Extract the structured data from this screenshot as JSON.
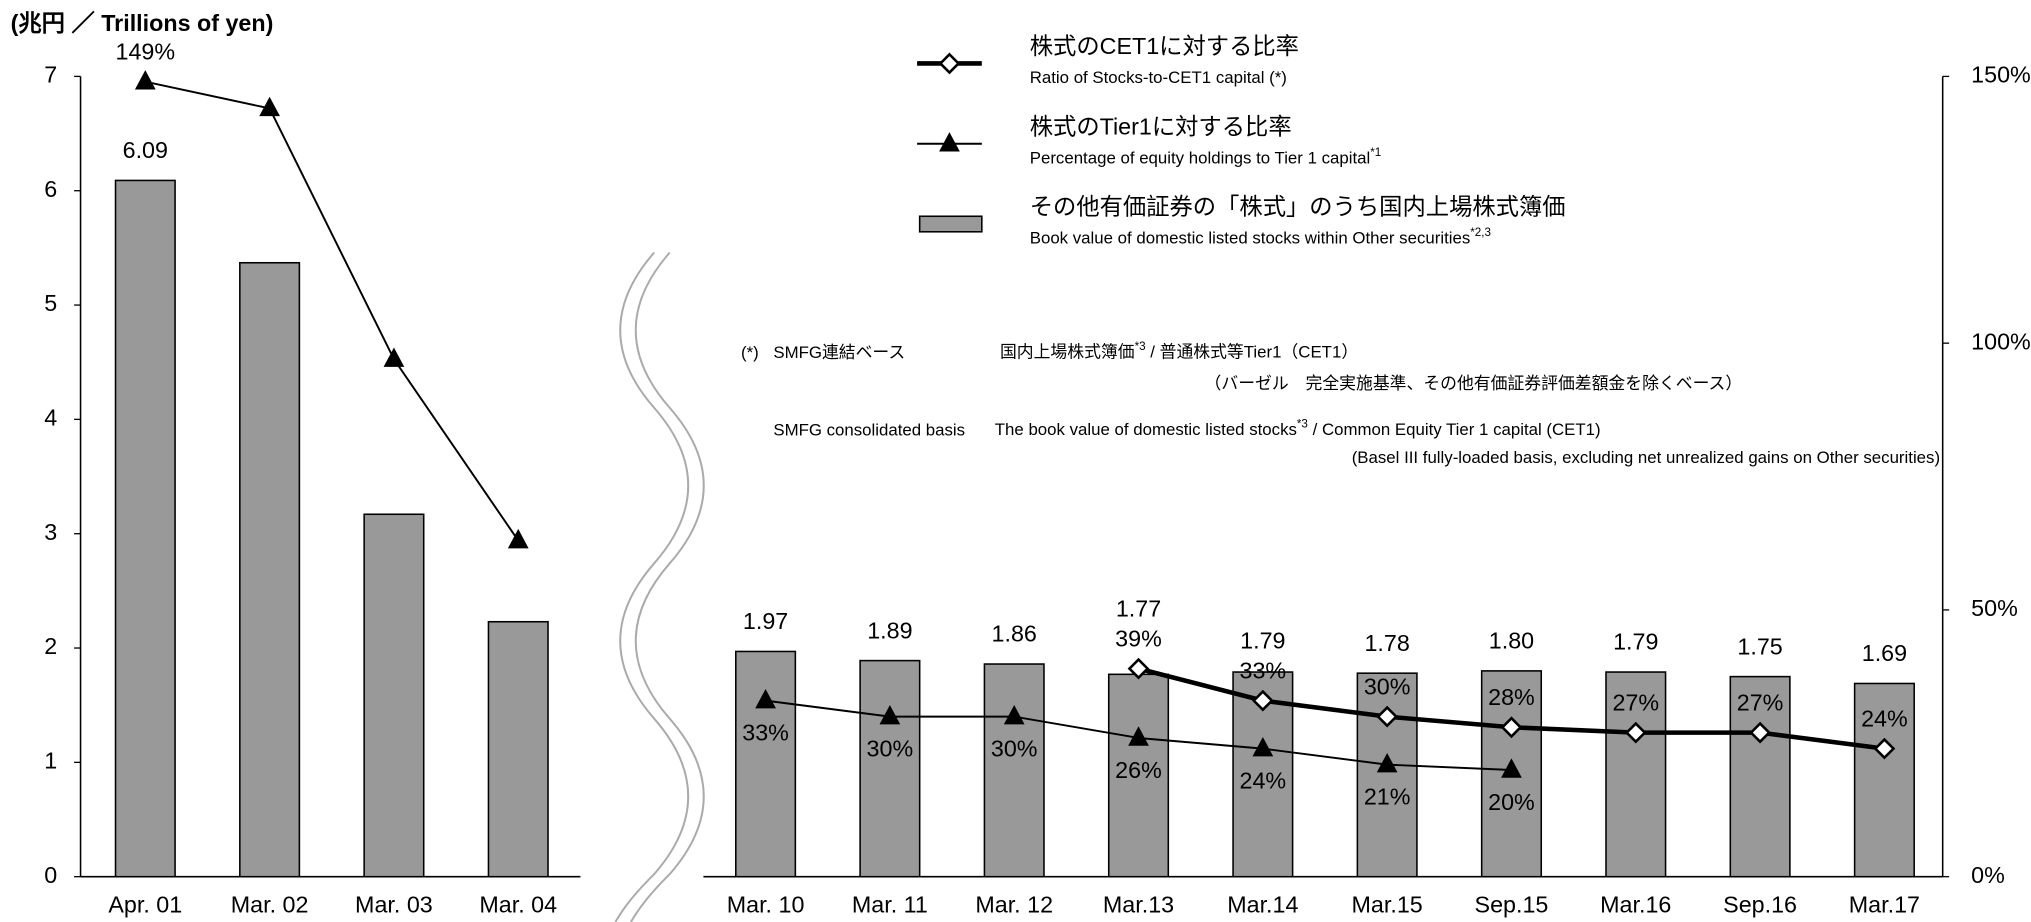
{
  "chart_data": {
    "type": "bar_line",
    "y_label": "(兆円 ／ Trillions of yen)",
    "categories": [
      "Apr. 01",
      "Mar. 02",
      "Mar. 03",
      "Mar. 04",
      "Mar. 10",
      "Mar. 11",
      "Mar.  12",
      "Mar.13",
      "Mar.14",
      "Mar.15",
      "Sep.15",
      "Mar.16",
      "Sep.16",
      "Mar.17"
    ],
    "axis_break_after": "Mar. 04",
    "ylim": [
      0,
      7
    ],
    "yticks": [
      0,
      1,
      2,
      3,
      4,
      5,
      6,
      7
    ],
    "y2lim": [
      0,
      150
    ],
    "y2ticks": [
      {
        "value": 0,
        "label": "0%"
      },
      {
        "value": 50,
        "label": "50%"
      },
      {
        "value": 100,
        "label": "100%"
      },
      {
        "value": 150,
        "label": "150%"
      }
    ],
    "series": [
      {
        "name": "株式のCET1に対する比率",
        "name_en": "Ratio of Stocks-to-CET1 capital (*)",
        "type": "line",
        "marker": "diamond",
        "line_width": 3.5,
        "axis": "y2",
        "color": "#000000",
        "values": [
          null,
          null,
          null,
          null,
          null,
          null,
          null,
          39,
          33,
          30,
          28,
          27,
          27,
          24
        ],
        "value_labels": [
          null,
          null,
          null,
          null,
          null,
          null,
          null,
          "39%",
          "33%",
          "30%",
          "28%",
          "27%",
          "27%",
          "24%"
        ]
      },
      {
        "name": "株式のTier1に対する比率",
        "name_en": "Percentage of equity holdings to Tier 1 capital",
        "name_en_note": "*1",
        "type": "line",
        "marker": "triangle",
        "line_width": 1.5,
        "axis": "y2",
        "color": "#000000",
        "values": [
          149,
          144,
          97,
          63,
          33,
          30,
          30,
          26,
          24,
          21,
          20,
          null,
          null,
          null
        ],
        "value_labels": [
          "149%",
          null,
          null,
          null,
          "33%",
          "30%",
          "30%",
          "26%",
          "24%",
          "21%",
          "20%",
          null,
          null,
          null
        ]
      },
      {
        "name": "その他有価証券の「株式」のうち国内上場株式簿価",
        "name_en": "Book value of domestic listed stocks within Other securities",
        "name_en_note": "*2,3",
        "type": "bar",
        "color": "#999999",
        "values": [
          6.09,
          5.37,
          3.17,
          2.23,
          1.97,
          1.89,
          1.86,
          1.77,
          1.79,
          1.78,
          1.8,
          1.79,
          1.75,
          1.69
        ],
        "value_labels": [
          "6.09",
          null,
          null,
          null,
          "1.97",
          "1.89",
          "1.86",
          "1.77",
          "1.79",
          "1.78",
          "1.80",
          "1.79",
          "1.75",
          "1.69"
        ]
      }
    ],
    "note": {
      "mark": "(*)",
      "basis_ja": "SMFG連結ベース",
      "formula_ja": [
        "国内上場株式簿価",
        "*3",
        " / 普通株式等Tier1（CET1）"
      ],
      "condition_ja": "（バーゼル　完全実施基準、その他有価証券評価差額金を除くベース）",
      "basis_en": "SMFG consolidated basis",
      "formula_en": [
        "The book value of domestic listed stocks",
        "*3",
        " / Common Equity Tier 1 capital (CET1)"
      ],
      "condition_en": "(Basel III fully-loaded basis, excluding net unrealized gains on Other securities)"
    }
  }
}
